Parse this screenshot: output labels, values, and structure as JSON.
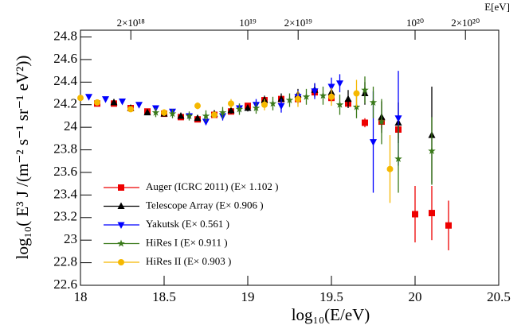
{
  "chart_data": {
    "type": "scatter",
    "xlabel": "log₁₀(E/eV)",
    "ylabel": "log₁₀( E³ J /(m⁻² s⁻¹ sr⁻¹ eV²))",
    "x2label": "E[eV]",
    "xlim": [
      18,
      20.5
    ],
    "ylim": [
      22.6,
      24.86
    ],
    "xticks": [
      18,
      18.5,
      19,
      19.5,
      20,
      20.5
    ],
    "yticks": [
      22.6,
      22.8,
      23,
      23.2,
      23.4,
      23.6,
      23.8,
      24,
      24.2,
      24.4,
      24.6,
      24.8
    ],
    "x2ticks": [
      {
        "value": 18.301,
        "label": "2×10¹⁸"
      },
      {
        "value": 19,
        "label": "10¹⁹"
      },
      {
        "value": 19.301,
        "label": "2×10¹⁹"
      },
      {
        "value": 20,
        "label": "10²⁰"
      },
      {
        "value": 20.301,
        "label": "2×10²⁰"
      }
    ],
    "series": [
      {
        "name": "Auger (ICRC 2011) (E× 1.102 )",
        "color": "#ee0000",
        "marker": "square",
        "x": [
          18.1,
          18.2,
          18.3,
          18.4,
          18.5,
          18.6,
          18.7,
          18.8,
          18.9,
          19.0,
          19.1,
          19.2,
          19.3,
          19.4,
          19.5,
          19.6,
          19.7,
          19.8,
          19.9,
          20.0,
          20.1,
          20.2
        ],
        "values": [
          24.21,
          24.21,
          24.17,
          24.14,
          24.12,
          24.09,
          24.07,
          24.11,
          24.14,
          24.19,
          24.24,
          24.25,
          24.25,
          24.31,
          24.26,
          24.21,
          24.04,
          24.05,
          23.98,
          23.23,
          23.24,
          23.13
        ],
        "errors": [
          0.01,
          0.01,
          0.01,
          0.01,
          0.01,
          0.01,
          0.01,
          0.01,
          0.01,
          0.01,
          0.01,
          0.02,
          0.02,
          0.02,
          0.03,
          0.03,
          0.04,
          0.06,
          0.08,
          0.25,
          0.24,
          0.22
        ]
      },
      {
        "name": "Telescope Array (E× 0.906 )",
        "color": "#000000",
        "marker": "triangle-up",
        "x": [
          18.2,
          18.3,
          18.4,
          18.5,
          18.6,
          18.7,
          18.8,
          18.9,
          19.0,
          19.1,
          19.2,
          19.3,
          19.4,
          19.5,
          19.6,
          19.7,
          19.8,
          19.9,
          20.1
        ],
        "values": [
          24.22,
          24.17,
          24.13,
          24.12,
          24.1,
          24.08,
          24.12,
          24.15,
          24.17,
          24.24,
          24.25,
          24.29,
          24.33,
          24.31,
          24.25,
          24.3,
          24.09,
          24.04,
          23.93
        ],
        "errors": [
          0.01,
          0.02,
          0.02,
          0.02,
          0.02,
          0.02,
          0.03,
          0.03,
          0.03,
          0.04,
          0.05,
          0.05,
          0.06,
          0.07,
          0.08,
          0.1,
          0.14,
          0.18,
          0.43
        ]
      },
      {
        "name": "Yakutsk (E× 0.561 )",
        "color": "#0000ff",
        "marker": "triangle-down",
        "x": [
          18.05,
          18.15,
          18.25,
          18.35,
          18.45,
          18.55,
          18.65,
          18.75,
          18.85,
          18.95,
          19.05,
          19.2,
          19.3,
          19.4,
          19.5,
          19.55,
          19.75,
          19.9
        ],
        "values": [
          24.27,
          24.25,
          24.23,
          24.2,
          24.17,
          24.14,
          24.1,
          24.05,
          24.1,
          24.17,
          24.2,
          24.19,
          24.27,
          24.32,
          24.36,
          24.39,
          23.87,
          24.08
        ],
        "errors": [
          0.01,
          0.01,
          0.01,
          0.02,
          0.02,
          0.02,
          0.03,
          0.03,
          0.04,
          0.04,
          0.05,
          0.06,
          0.06,
          0.07,
          0.08,
          0.08,
          0.45,
          0.42
        ]
      },
      {
        "name": "HiRes I (E× 0.911 )",
        "color": "#3a7a1a",
        "marker": "star",
        "x": [
          18.45,
          18.55,
          18.65,
          18.75,
          18.85,
          18.95,
          19.05,
          19.15,
          19.25,
          19.35,
          19.45,
          19.55,
          19.65,
          19.7,
          19.75,
          19.8,
          19.9,
          20.1
        ],
        "values": [
          24.13,
          24.12,
          24.1,
          24.1,
          24.13,
          24.16,
          24.17,
          24.21,
          24.24,
          24.27,
          24.28,
          24.2,
          24.18,
          24.33,
          24.22,
          24.05,
          23.72,
          23.79
        ],
        "errors": [
          0.04,
          0.04,
          0.04,
          0.05,
          0.05,
          0.05,
          0.05,
          0.06,
          0.06,
          0.07,
          0.08,
          0.09,
          0.1,
          0.12,
          0.14,
          0.2,
          0.3,
          0.3
        ]
      },
      {
        "name": "HiRes II (E× 0.903 )",
        "color": "#f5b800",
        "marker": "circle",
        "x": [
          18.0,
          18.1,
          18.3,
          18.5,
          18.7,
          18.8,
          18.9,
          19.1,
          19.3,
          19.5,
          19.65,
          19.85
        ],
        "values": [
          24.26,
          24.22,
          24.16,
          24.13,
          24.19,
          24.11,
          24.21,
          24.2,
          24.25,
          24.27,
          24.3,
          23.63
        ],
        "errors": [
          0.02,
          0.02,
          0.02,
          0.03,
          0.03,
          0.03,
          0.04,
          0.05,
          0.07,
          0.08,
          0.12,
          0.3
        ]
      }
    ]
  }
}
